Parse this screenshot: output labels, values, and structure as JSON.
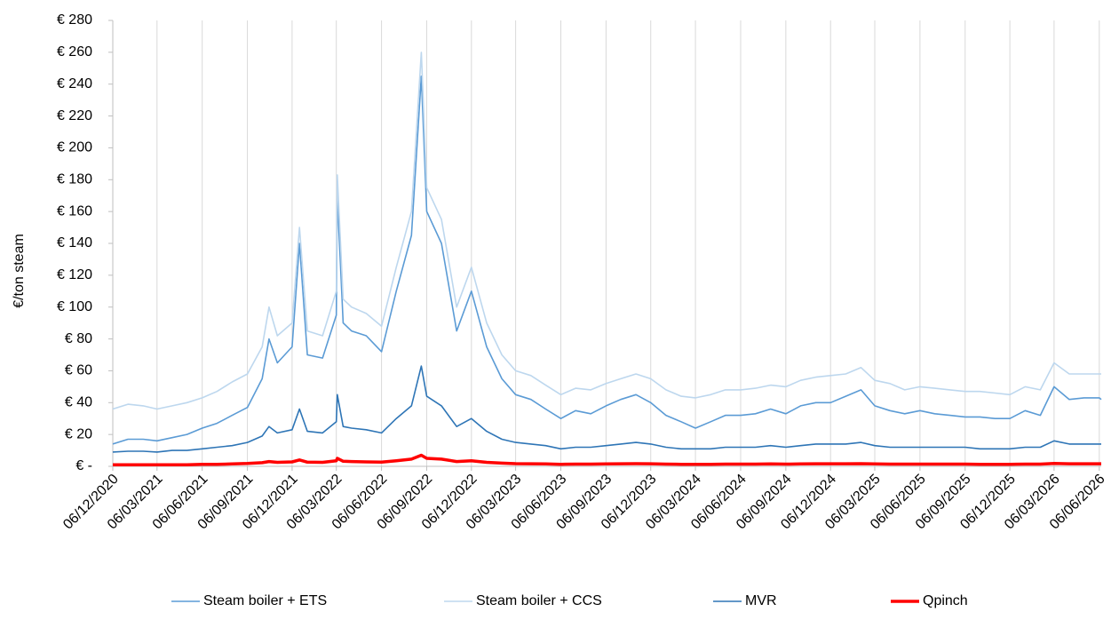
{
  "chart_data": {
    "type": "line",
    "y_label": "€/ton steam",
    "x": [
      "06/12/2020",
      "06/01/2021",
      "06/02/2021",
      "06/03/2021",
      "06/04/2021",
      "06/05/2021",
      "06/06/2021",
      "06/07/2021",
      "06/08/2021",
      "06/09/2021",
      "06/10/2021",
      "20/10/2021",
      "06/11/2021",
      "06/12/2021",
      "21/12/2021",
      "06/01/2022",
      "06/02/2022",
      "06/03/2022",
      "08/03/2022",
      "20/03/2022",
      "06/04/2022",
      "06/05/2022",
      "06/06/2022",
      "06/07/2022",
      "06/08/2022",
      "26/08/2022",
      "06/09/2022",
      "06/10/2022",
      "06/11/2022",
      "06/12/2022",
      "06/01/2023",
      "06/02/2023",
      "06/03/2023",
      "06/04/2023",
      "06/05/2023",
      "06/06/2023",
      "06/07/2023",
      "06/08/2023",
      "06/09/2023",
      "06/10/2023",
      "06/11/2023",
      "06/12/2023",
      "06/01/2024",
      "06/02/2024",
      "06/03/2024",
      "06/04/2024",
      "06/05/2024",
      "06/06/2024",
      "06/07/2024",
      "06/08/2024",
      "06/09/2024",
      "06/10/2024",
      "06/11/2024",
      "06/12/2024",
      "06/01/2025",
      "06/02/2025",
      "06/03/2025",
      "06/04/2025",
      "06/05/2025",
      "06/06/2025",
      "06/07/2025",
      "06/08/2025",
      "06/09/2025",
      "06/10/2025",
      "06/11/2025",
      "06/12/2025",
      "06/01/2026",
      "06/02/2026",
      "06/03/2026",
      "06/04/2026",
      "06/05/2026",
      "06/06/2026",
      "10/06/2026"
    ],
    "series": [
      {
        "name": "Steam boiler + ETS",
        "color": "#5b9bd5",
        "values": [
          14,
          17,
          17,
          16,
          18,
          20,
          24,
          27,
          32,
          37,
          55,
          80,
          65,
          75,
          140,
          70,
          68,
          95,
          170,
          90,
          85,
          82,
          72,
          110,
          145,
          245,
          160,
          140,
          85,
          110,
          75,
          55,
          45,
          42,
          36,
          30,
          35,
          33,
          38,
          42,
          45,
          40,
          32,
          28,
          24,
          28,
          32,
          32,
          33,
          36,
          33,
          38,
          40,
          40,
          44,
          48,
          38,
          35,
          33,
          35,
          33,
          32,
          31,
          31,
          30,
          30,
          35,
          32,
          50,
          42,
          43,
          43,
          42
        ]
      },
      {
        "name": "Steam boiler + CCS",
        "color": "#bdd7ee",
        "values": [
          36,
          39,
          38,
          36,
          38,
          40,
          43,
          47,
          53,
          58,
          75,
          100,
          82,
          90,
          150,
          85,
          82,
          110,
          183,
          105,
          100,
          96,
          88,
          125,
          160,
          260,
          175,
          155,
          100,
          125,
          90,
          70,
          60,
          57,
          51,
          45,
          49,
          48,
          52,
          55,
          58,
          55,
          48,
          44,
          43,
          45,
          48,
          48,
          49,
          51,
          50,
          54,
          56,
          57,
          58,
          62,
          54,
          52,
          48,
          50,
          49,
          48,
          47,
          47,
          46,
          45,
          50,
          48,
          65,
          58,
          58,
          58,
          58
        ]
      },
      {
        "name": "MVR",
        "color": "#2e75b6",
        "values": [
          9,
          9.5,
          9.5,
          9,
          10,
          10,
          11,
          12,
          13,
          15,
          19,
          25,
          21,
          23,
          36,
          22,
          21,
          28,
          45,
          25,
          24,
          23,
          21,
          30,
          38,
          63,
          44,
          38,
          25,
          30,
          22,
          17,
          15,
          14,
          13,
          11,
          12,
          12,
          13,
          14,
          15,
          14,
          12,
          11,
          11,
          11,
          12,
          12,
          12,
          13,
          12,
          13,
          14,
          14,
          14,
          15,
          13,
          12,
          12,
          12,
          12,
          12,
          12,
          11,
          11,
          11,
          12,
          12,
          16,
          14,
          14,
          14,
          14
        ]
      },
      {
        "name": "Qpinch",
        "color": "#ff0000",
        "values": [
          1,
          1,
          1,
          1,
          1,
          1,
          1.2,
          1.3,
          1.5,
          1.8,
          2.3,
          3,
          2.5,
          2.8,
          4,
          2.6,
          2.5,
          3.5,
          5,
          3.2,
          3,
          2.8,
          2.6,
          3.5,
          4.5,
          7,
          5,
          4.5,
          3,
          3.5,
          2.5,
          2,
          1.7,
          1.6,
          1.5,
          1.3,
          1.4,
          1.4,
          1.5,
          1.6,
          1.7,
          1.6,
          1.4,
          1.3,
          1.2,
          1.3,
          1.4,
          1.4,
          1.4,
          1.5,
          1.4,
          1.5,
          1.6,
          1.6,
          1.6,
          1.7,
          1.5,
          1.4,
          1.4,
          1.4,
          1.4,
          1.4,
          1.4,
          1.3,
          1.3,
          1.3,
          1.4,
          1.4,
          1.8,
          1.6,
          1.6,
          1.6,
          1.6
        ]
      }
    ],
    "xlim": [
      "06/12/2020",
      "10/06/2026"
    ],
    "xticks": [
      "06/12/2020",
      "06/03/2021",
      "06/06/2021",
      "06/09/2021",
      "06/12/2021",
      "06/03/2022",
      "06/06/2022",
      "06/09/2022",
      "06/12/2022",
      "06/03/2023",
      "06/06/2023",
      "06/09/2023",
      "06/12/2023",
      "06/03/2024",
      "06/06/2024",
      "06/09/2024",
      "06/12/2024",
      "06/03/2025",
      "06/06/2025",
      "06/09/2025",
      "06/12/2025",
      "06/03/2026",
      "06/06/2026"
    ],
    "ylim": [
      0,
      280
    ],
    "yticks": [
      {
        "value": 0,
        "label": "€ -"
      },
      {
        "value": 20,
        "label": "€ 20"
      },
      {
        "value": 40,
        "label": "€ 40"
      },
      {
        "value": 60,
        "label": "€ 60"
      },
      {
        "value": 80,
        "label": "€ 80"
      },
      {
        "value": 100,
        "label": "€ 100"
      },
      {
        "value": 120,
        "label": "€ 120"
      },
      {
        "value": 140,
        "label": "€ 140"
      },
      {
        "value": 160,
        "label": "€ 160"
      },
      {
        "value": 180,
        "label": "€ 180"
      },
      {
        "value": 200,
        "label": "€ 200"
      },
      {
        "value": 220,
        "label": "€ 220"
      },
      {
        "value": 240,
        "label": "€ 240"
      },
      {
        "value": 260,
        "label": "€ 260"
      },
      {
        "value": 280,
        "label": "€ 280"
      }
    ],
    "grid": "x",
    "legend": "bottom"
  }
}
